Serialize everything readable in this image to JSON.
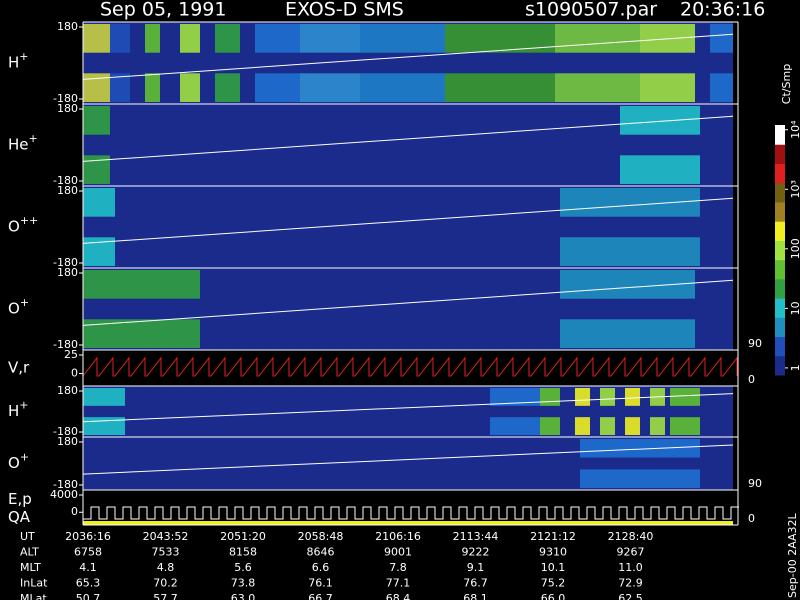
{
  "header": {
    "date": "Sep 05, 1991",
    "instrument": "EXOS-D SMS",
    "file": "s1090507.par",
    "time": "20:36:16"
  },
  "chart_data": [
    {
      "type": "spectrogram",
      "ylabel": "H",
      "ylabel_sup": "+",
      "ylim": [
        -180,
        180
      ],
      "yticks": [
        -180,
        180
      ]
    },
    {
      "type": "spectrogram",
      "ylabel": "He",
      "ylabel_sup": "+",
      "ylim": [
        -180,
        180
      ],
      "yticks": [
        -180,
        180
      ]
    },
    {
      "type": "spectrogram",
      "ylabel": "O",
      "ylabel_sup": "++",
      "ylim": [
        -180,
        180
      ],
      "yticks": [
        -180,
        180
      ]
    },
    {
      "type": "spectrogram",
      "ylabel": "O",
      "ylabel_sup": "+",
      "ylim": [
        -180,
        180
      ],
      "yticks": [
        -180,
        180
      ],
      "right_label": "90"
    },
    {
      "type": "timeseries",
      "ylabel": "V,r",
      "ylim": [
        -10,
        25
      ],
      "yticks": [
        0,
        25
      ],
      "right_label": "0",
      "color": "#e02020"
    },
    {
      "type": "spectrogram",
      "ylabel": "H",
      "ylabel_sup": "+",
      "ylim": [
        -180,
        180
      ],
      "yticks": [
        -180,
        180
      ]
    },
    {
      "type": "spectrogram",
      "ylabel": "O",
      "ylabel_sup": "+",
      "ylim": [
        -180,
        180
      ],
      "yticks": [
        -180,
        180
      ],
      "right_label": "90"
    },
    {
      "type": "timeseries",
      "ylabel": "E,p",
      "ylabel2": "QA",
      "ylim": [
        -1800,
        4000
      ],
      "yticks": [
        0,
        4000
      ],
      "right_label": "0",
      "color": "#ffffff"
    },
    {
      "type": "colorbar",
      "label": "Ct/Smp",
      "log_scale": true,
      "ylim": [
        0.76,
        12000
      ],
      "yticks": [
        1,
        10,
        100,
        {
          "value": 1000,
          "label": "10³"
        },
        {
          "value": 10000,
          "label": "10⁴"
        }
      ],
      "colors": [
        "#1a2b8c",
        "#1f4fb8",
        "#1f8fc0",
        "#20c0c8",
        "#30a040",
        "#60c030",
        "#a0e040",
        "#f0f020",
        "#a08020",
        "#706010",
        "#e02020",
        "#a01010",
        "#ffffff"
      ]
    }
  ],
  "footer": {
    "rows": [
      {
        "label": "UT",
        "values": [
          "2036:16",
          "2043:52",
          "2051:20",
          "2058:48",
          "2106:16",
          "2113:44",
          "2121:12",
          "2128:40"
        ]
      },
      {
        "label": "ALT",
        "values": [
          "6758",
          "7533",
          "8158",
          "8646",
          "9001",
          "9222",
          "9310",
          "9267"
        ]
      },
      {
        "label": "MLT",
        "values": [
          "4.1",
          "4.8",
          "5.6",
          "6.6",
          "7.8",
          "9.1",
          "10.1",
          "11.0"
        ]
      },
      {
        "label": "InLat",
        "values": [
          "65.3",
          "70.2",
          "73.8",
          "76.1",
          "77.1",
          "76.7",
          "75.2",
          "72.9"
        ]
      },
      {
        "label": "MLat",
        "values": [
          "50.7",
          "57.7",
          "63.0",
          "66.7",
          "68.4",
          "68.1",
          "66.0",
          "62.5"
        ]
      }
    ]
  },
  "side_label": "Sep-00 2AA32L"
}
